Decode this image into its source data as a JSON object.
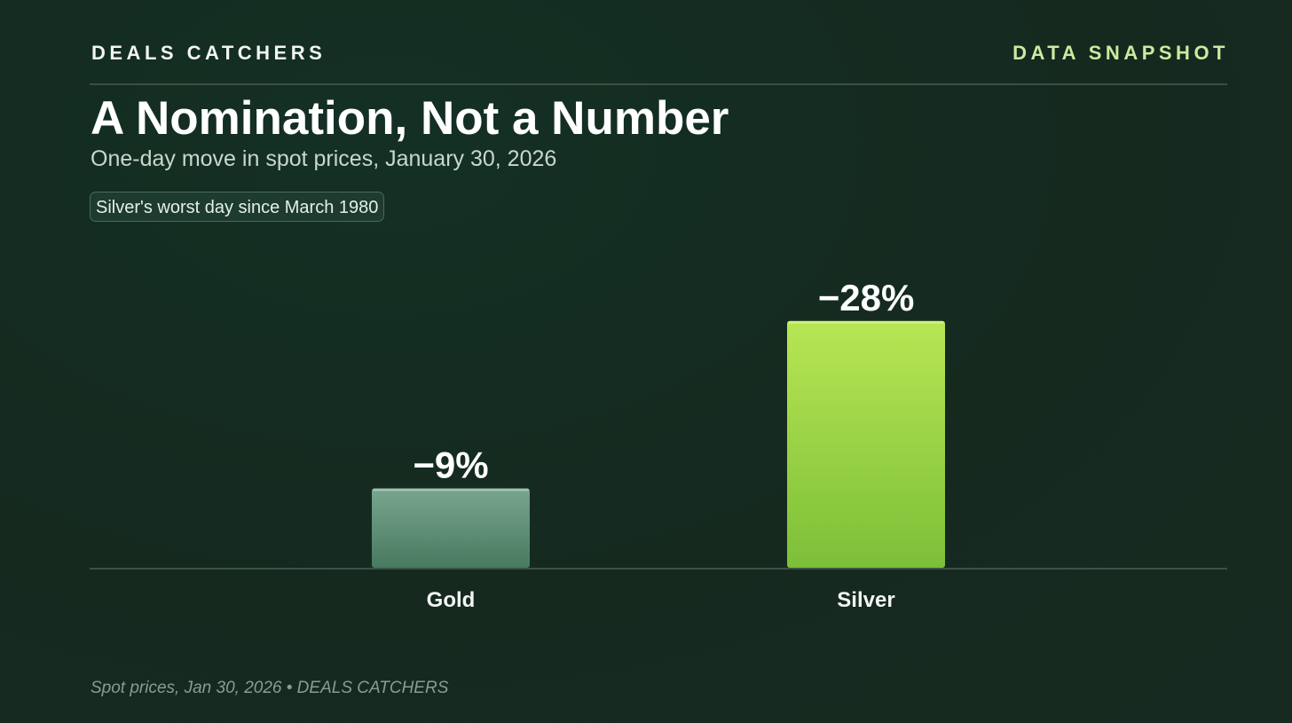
{
  "header": {
    "brand": "DEALS CATCHERS",
    "tag": "DATA SNAPSHOT"
  },
  "title": "A Nomination, Not a Number",
  "subtitle": "One-day move in spot prices, January 30, 2026",
  "callout": "Silver's worst day since March 1980",
  "footer": {
    "source": "Spot prices, Jan 30, 2026 • DEALS CATCHERS"
  },
  "colors": {
    "gold_bar_top": "#78a58e",
    "gold_bar_bottom": "#487a60",
    "silver_bar_top": "#b8e654",
    "silver_bar_bottom": "#7cbf38",
    "accent": "#cfe9a0"
  },
  "chart_data": {
    "type": "bar",
    "categories": [
      "Gold",
      "Silver"
    ],
    "values": [
      -9,
      -28
    ],
    "value_labels": [
      "−9%",
      "−28%"
    ],
    "title": "A Nomination, Not a Number",
    "subtitle": "One-day move in spot prices, January 30, 2026",
    "xlabel": "",
    "ylabel": "",
    "ylim": [
      0,
      30
    ],
    "bars_show_magnitude": true,
    "grid": false,
    "legend": "none"
  }
}
